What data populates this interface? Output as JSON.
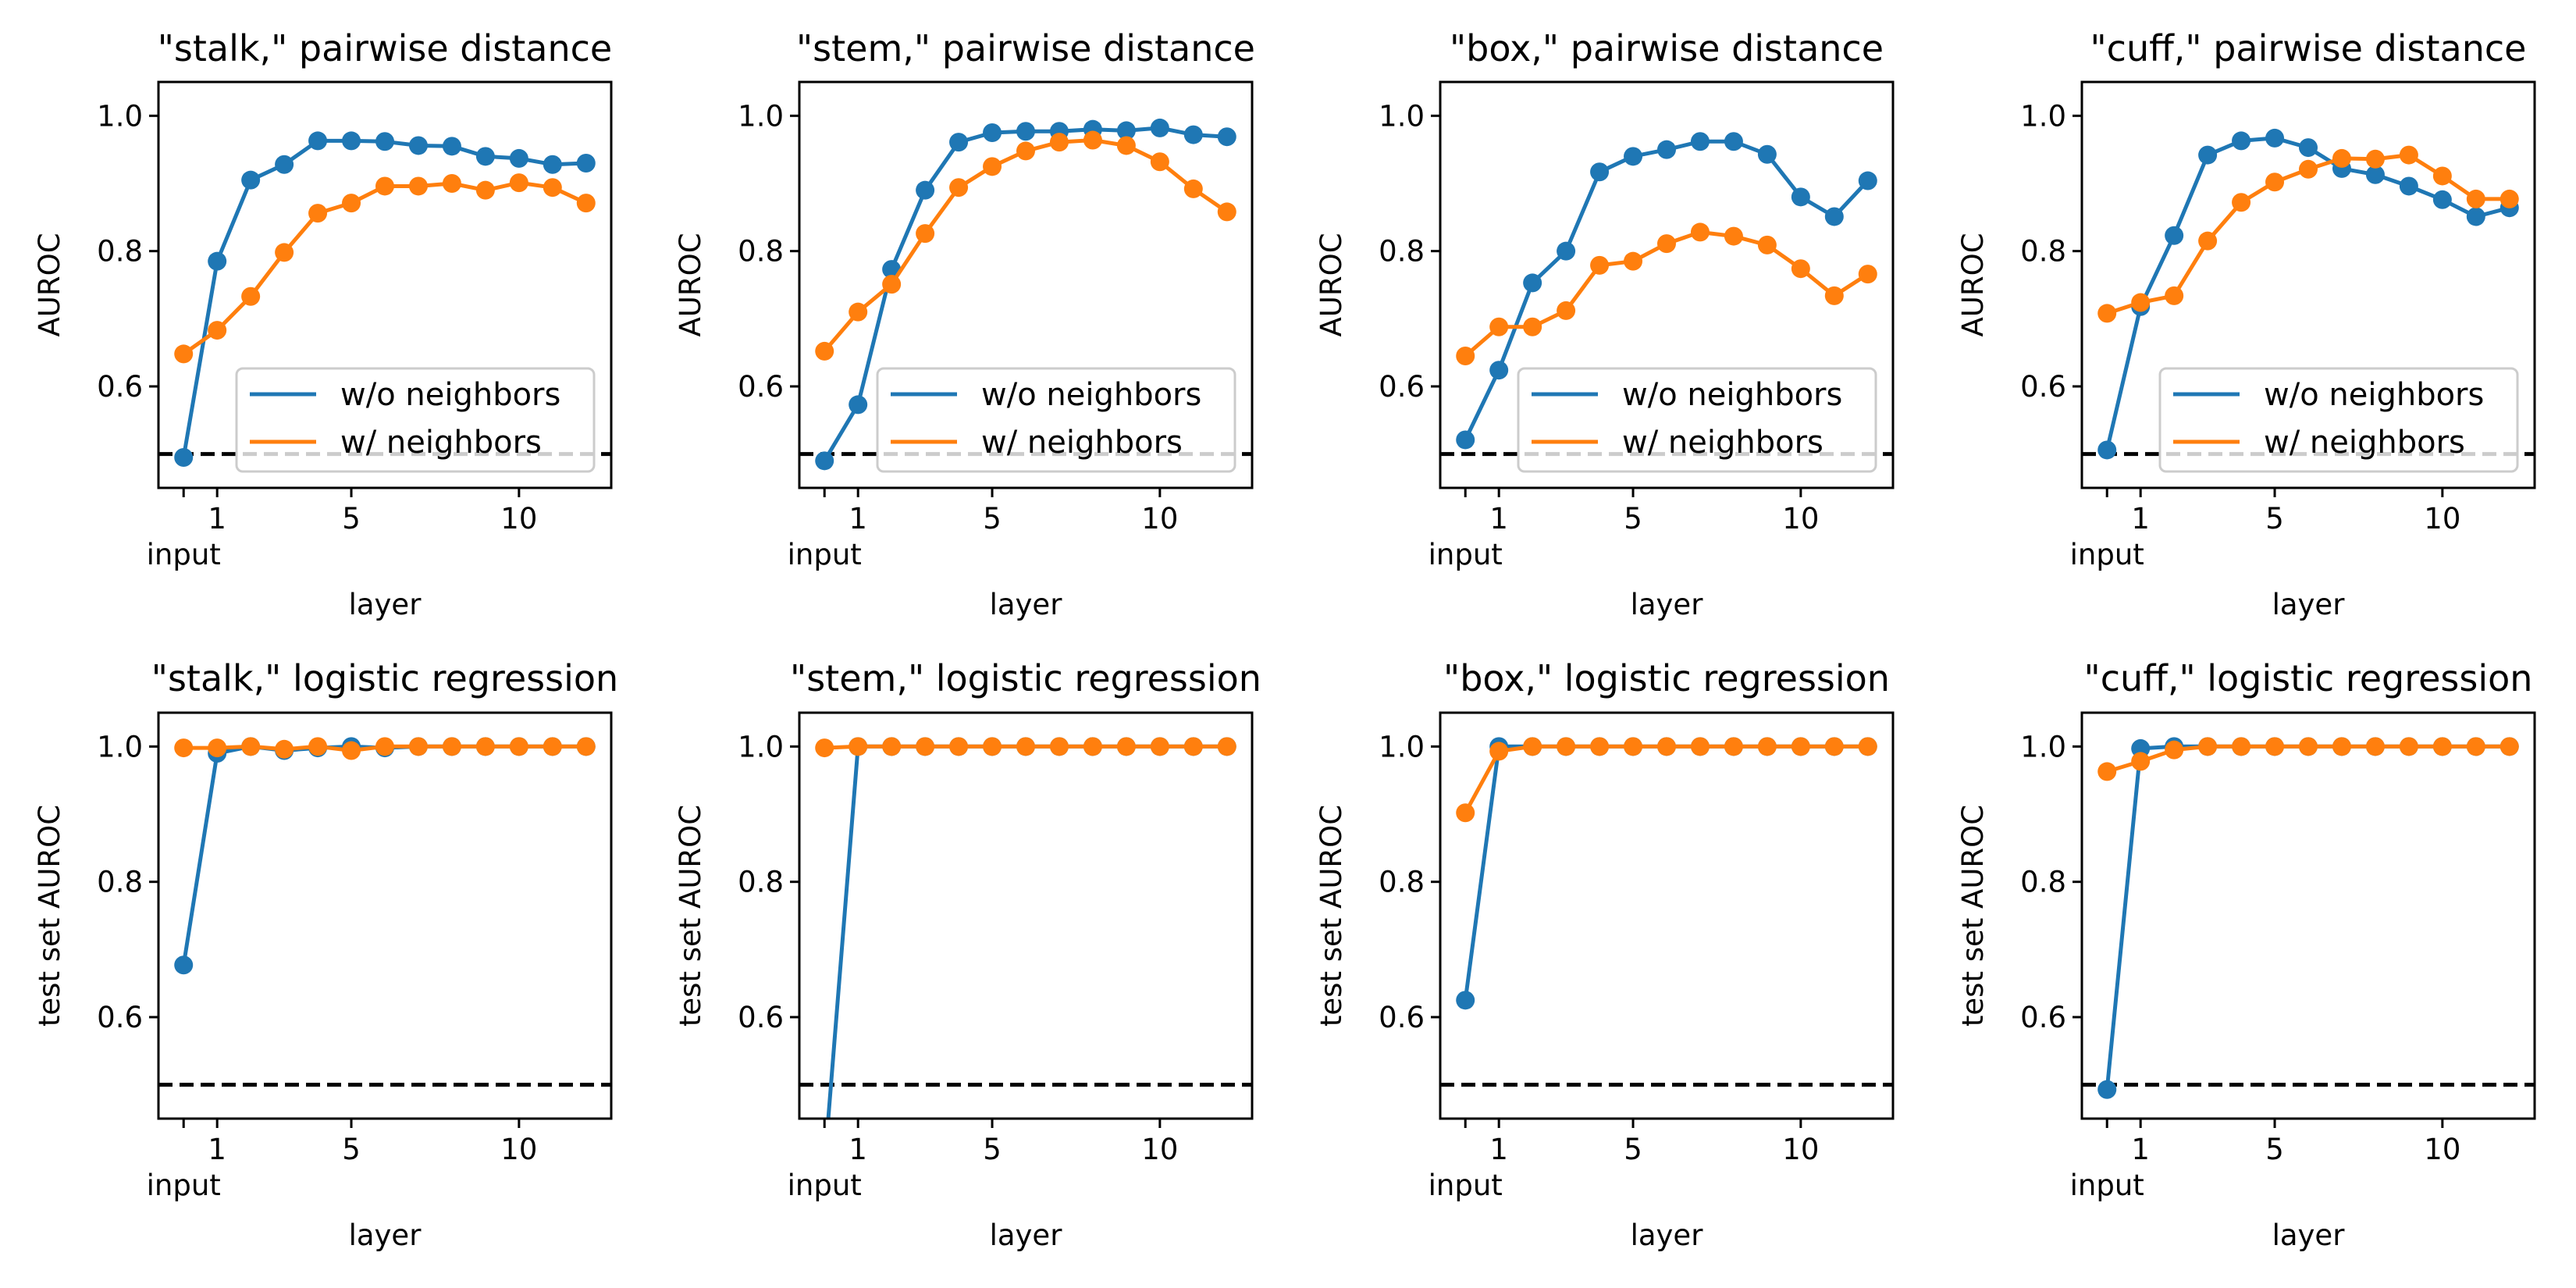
{
  "figure": {
    "colors": {
      "without": "#1f77b4",
      "with": "#ff7f0e",
      "baseline": "#000000"
    }
  },
  "panels": [
    {
      "title": "\"stalk,\" pairwise distance",
      "xlabel": "layer",
      "ylabel": "AUROC",
      "legend": {
        "loc": "lower-right",
        "entries": [
          "w/o neighbors",
          "w/ neighbors"
        ]
      }
    },
    {
      "title": "\"stem,\" pairwise distance",
      "xlabel": "layer",
      "ylabel": "AUROC",
      "legend": {
        "loc": "lower-right",
        "entries": [
          "w/o neighbors",
          "w/ neighbors"
        ]
      }
    },
    {
      "title": "\"box,\" pairwise distance",
      "xlabel": "layer",
      "ylabel": "AUROC",
      "legend": {
        "loc": "lower-right",
        "entries": [
          "w/o neighbors",
          "w/ neighbors"
        ]
      }
    },
    {
      "title": "\"cuff,\" pairwise distance",
      "xlabel": "layer",
      "ylabel": "AUROC",
      "legend": {
        "loc": "lower-right",
        "entries": [
          "w/o neighbors",
          "w/ neighbors"
        ]
      }
    },
    {
      "title": "\"stalk,\" logistic regression",
      "xlabel": "layer",
      "ylabel": "test set AUROC"
    },
    {
      "title": "\"stem,\" logistic regression",
      "xlabel": "layer",
      "ylabel": "test set AUROC"
    },
    {
      "title": "\"box,\" logistic regression",
      "xlabel": "layer",
      "ylabel": "test set AUROC"
    },
    {
      "title": "\"cuff,\" logistic regression",
      "xlabel": "layer",
      "ylabel": "test set AUROC"
    }
  ],
  "chart_data": [
    {
      "type": "line",
      "title": "\"stalk,\" pairwise distance",
      "xlabel": "layer",
      "ylabel": "AUROC",
      "x": [
        0,
        1,
        2,
        3,
        4,
        5,
        6,
        7,
        8,
        9,
        10,
        11,
        12
      ],
      "xticks": [
        1,
        5,
        10
      ],
      "xtick_extra": {
        "x": 0,
        "label": "input"
      },
      "ylim": [
        0.45,
        1.05
      ],
      "yticks": [
        0.6,
        0.8,
        1.0
      ],
      "baseline": 0.5,
      "grid": false,
      "legend": "lower right",
      "series": [
        {
          "name": "w/o neighbors",
          "color": "#1f77b4",
          "values": [
            0.495,
            0.785,
            0.905,
            0.928,
            0.963,
            0.963,
            0.962,
            0.956,
            0.955,
            0.94,
            0.937,
            0.928,
            0.93
          ]
        },
        {
          "name": "w/ neighbors",
          "color": "#ff7f0e",
          "values": [
            0.648,
            0.683,
            0.733,
            0.798,
            0.856,
            0.871,
            0.896,
            0.896,
            0.9,
            0.89,
            0.901,
            0.894,
            0.871
          ]
        }
      ]
    },
    {
      "type": "line",
      "title": "\"stem,\" pairwise distance",
      "xlabel": "layer",
      "ylabel": "AUROC",
      "x": [
        0,
        1,
        2,
        3,
        4,
        5,
        6,
        7,
        8,
        9,
        10,
        11,
        12
      ],
      "xticks": [
        1,
        5,
        10
      ],
      "xtick_extra": {
        "x": 0,
        "label": "input"
      },
      "ylim": [
        0.45,
        1.05
      ],
      "yticks": [
        0.6,
        0.8,
        1.0
      ],
      "baseline": 0.5,
      "grid": false,
      "legend": "lower right",
      "series": [
        {
          "name": "w/o neighbors",
          "color": "#1f77b4",
          "values": [
            0.49,
            0.573,
            0.773,
            0.89,
            0.961,
            0.975,
            0.977,
            0.977,
            0.98,
            0.978,
            0.982,
            0.972,
            0.969
          ]
        },
        {
          "name": "w/ neighbors",
          "color": "#ff7f0e",
          "values": [
            0.652,
            0.71,
            0.751,
            0.826,
            0.894,
            0.925,
            0.948,
            0.961,
            0.964,
            0.956,
            0.932,
            0.892,
            0.858
          ]
        }
      ]
    },
    {
      "type": "line",
      "title": "\"box,\" pairwise distance",
      "xlabel": "layer",
      "ylabel": "AUROC",
      "x": [
        0,
        1,
        2,
        3,
        4,
        5,
        6,
        7,
        8,
        9,
        10,
        11,
        12
      ],
      "xticks": [
        1,
        5,
        10
      ],
      "xtick_extra": {
        "x": 0,
        "label": "input"
      },
      "ylim": [
        0.45,
        1.05
      ],
      "yticks": [
        0.6,
        0.8,
        1.0
      ],
      "baseline": 0.5,
      "grid": false,
      "legend": "lower right",
      "series": [
        {
          "name": "w/o neighbors",
          "color": "#1f77b4",
          "values": [
            0.521,
            0.624,
            0.753,
            0.8,
            0.917,
            0.94,
            0.95,
            0.962,
            0.962,
            0.943,
            0.88,
            0.851,
            0.904
          ]
        },
        {
          "name": "w/ neighbors",
          "color": "#ff7f0e",
          "values": [
            0.645,
            0.688,
            0.688,
            0.712,
            0.779,
            0.785,
            0.811,
            0.828,
            0.822,
            0.809,
            0.774,
            0.734,
            0.766
          ]
        }
      ]
    },
    {
      "type": "line",
      "title": "\"cuff,\" pairwise distance",
      "xlabel": "layer",
      "ylabel": "AUROC",
      "x": [
        0,
        1,
        2,
        3,
        4,
        5,
        6,
        7,
        8,
        9,
        10,
        11,
        12
      ],
      "xticks": [
        1,
        5,
        10
      ],
      "xtick_extra": {
        "x": 0,
        "label": "input"
      },
      "ylim": [
        0.45,
        1.05
      ],
      "yticks": [
        0.6,
        0.8,
        1.0
      ],
      "baseline": 0.5,
      "grid": false,
      "legend": "lower right",
      "series": [
        {
          "name": "w/o neighbors",
          "color": "#1f77b4",
          "values": [
            0.506,
            0.718,
            0.823,
            0.942,
            0.963,
            0.967,
            0.953,
            0.922,
            0.913,
            0.896,
            0.876,
            0.851,
            0.864
          ]
        },
        {
          "name": "w/ neighbors",
          "color": "#ff7f0e",
          "values": [
            0.708,
            0.724,
            0.734,
            0.815,
            0.872,
            0.902,
            0.921,
            0.937,
            0.936,
            0.942,
            0.911,
            0.877,
            0.877
          ]
        }
      ]
    },
    {
      "type": "line",
      "title": "\"stalk,\" logistic regression",
      "xlabel": "layer",
      "ylabel": "test set AUROC",
      "x": [
        0,
        1,
        2,
        3,
        4,
        5,
        6,
        7,
        8,
        9,
        10,
        11,
        12
      ],
      "xticks": [
        1,
        5,
        10
      ],
      "xtick_extra": {
        "x": 0,
        "label": "input"
      },
      "ylim": [
        0.45,
        1.05
      ],
      "yticks": [
        0.6,
        0.8,
        1.0
      ],
      "baseline": 0.5,
      "grid": false,
      "series": [
        {
          "color": "#1f77b4",
          "values": [
            0.677,
            0.99,
            1.0,
            0.994,
            0.998,
            1.0,
            0.998,
            1.0,
            1.0,
            1.0,
            1.0,
            1.0,
            1.0
          ]
        },
        {
          "color": "#ff7f0e",
          "values": [
            0.998,
            0.998,
            1.0,
            0.996,
            1.0,
            0.994,
            1.0,
            1.0,
            1.0,
            1.0,
            1.0,
            1.0,
            1.0
          ]
        }
      ]
    },
    {
      "type": "line",
      "title": "\"stem,\" logistic regression",
      "xlabel": "layer",
      "ylabel": "test set AUROC",
      "x": [
        0,
        1,
        2,
        3,
        4,
        5,
        6,
        7,
        8,
        9,
        10,
        11,
        12
      ],
      "xticks": [
        1,
        5,
        10
      ],
      "xtick_extra": {
        "x": 0,
        "label": "input"
      },
      "ylim": [
        0.45,
        1.05
      ],
      "yticks": [
        0.6,
        0.8,
        1.0
      ],
      "baseline": 0.5,
      "grid": false,
      "series": [
        {
          "color": "#1f77b4",
          "values": [
            0.38,
            1.0,
            1.0,
            1.0,
            1.0,
            1.0,
            1.0,
            1.0,
            1.0,
            1.0,
            1.0,
            1.0,
            1.0
          ]
        },
        {
          "color": "#ff7f0e",
          "values": [
            0.998,
            1.0,
            1.0,
            1.0,
            1.0,
            1.0,
            1.0,
            1.0,
            1.0,
            1.0,
            1.0,
            1.0,
            1.0
          ]
        }
      ]
    },
    {
      "type": "line",
      "title": "\"box,\" logistic regression",
      "xlabel": "layer",
      "ylabel": "test set AUROC",
      "x": [
        0,
        1,
        2,
        3,
        4,
        5,
        6,
        7,
        8,
        9,
        10,
        11,
        12
      ],
      "xticks": [
        1,
        5,
        10
      ],
      "xtick_extra": {
        "x": 0,
        "label": "input"
      },
      "ylim": [
        0.45,
        1.05
      ],
      "yticks": [
        0.6,
        0.8,
        1.0
      ],
      "baseline": 0.5,
      "grid": false,
      "series": [
        {
          "color": "#1f77b4",
          "values": [
            0.625,
            1.0,
            1.0,
            1.0,
            1.0,
            1.0,
            1.0,
            1.0,
            1.0,
            1.0,
            1.0,
            1.0,
            1.0
          ]
        },
        {
          "color": "#ff7f0e",
          "values": [
            0.902,
            0.993,
            1.0,
            1.0,
            1.0,
            1.0,
            1.0,
            1.0,
            1.0,
            1.0,
            1.0,
            1.0,
            1.0
          ]
        }
      ]
    },
    {
      "type": "line",
      "title": "\"cuff,\" logistic regression",
      "xlabel": "layer",
      "ylabel": "test set AUROC",
      "x": [
        0,
        1,
        2,
        3,
        4,
        5,
        6,
        7,
        8,
        9,
        10,
        11,
        12
      ],
      "xticks": [
        1,
        5,
        10
      ],
      "xtick_extra": {
        "x": 0,
        "label": "input"
      },
      "ylim": [
        0.45,
        1.05
      ],
      "yticks": [
        0.6,
        0.8,
        1.0
      ],
      "baseline": 0.5,
      "grid": false,
      "series": [
        {
          "color": "#1f77b4",
          "values": [
            0.493,
            0.997,
            1.0,
            1.0,
            1.0,
            1.0,
            1.0,
            1.0,
            1.0,
            1.0,
            1.0,
            1.0,
            1.0
          ]
        },
        {
          "color": "#ff7f0e",
          "values": [
            0.963,
            0.978,
            0.995,
            1.0,
            1.0,
            1.0,
            1.0,
            1.0,
            1.0,
            1.0,
            1.0,
            1.0,
            1.0
          ]
        }
      ]
    }
  ]
}
